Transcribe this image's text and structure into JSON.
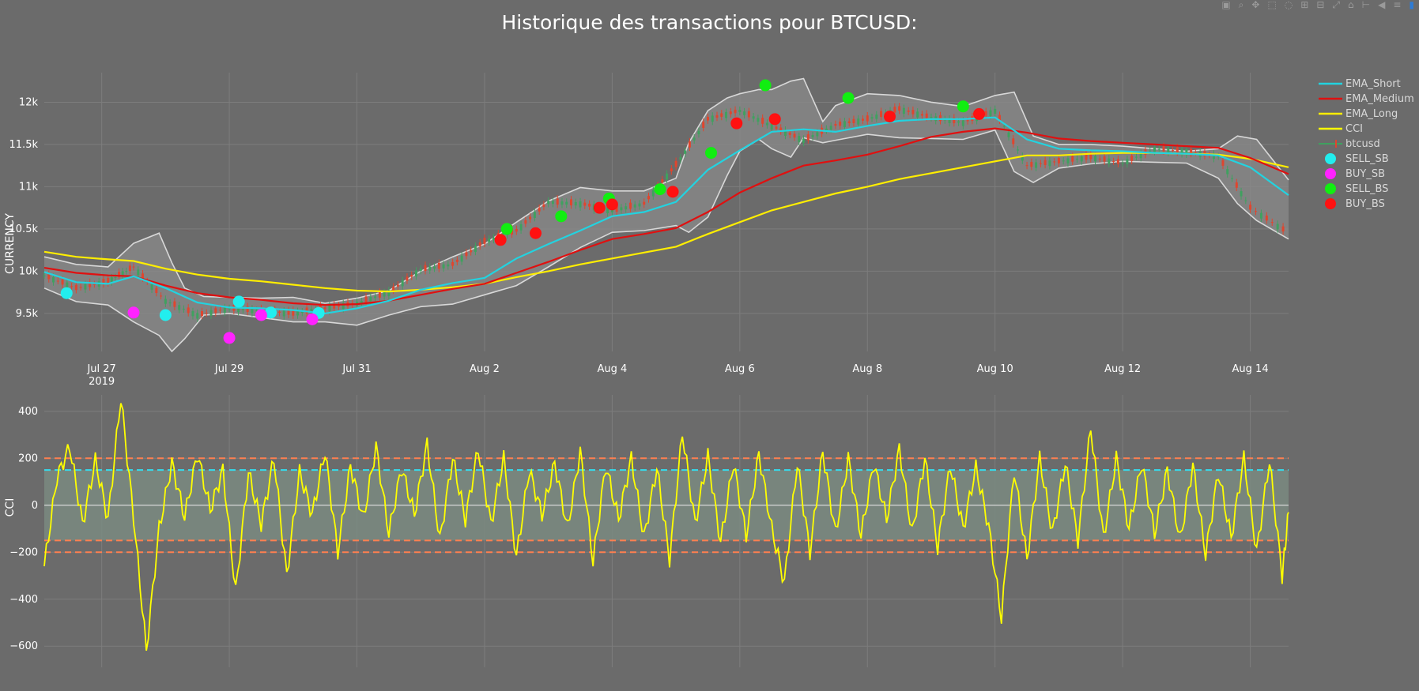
{
  "title": "Historique des transactions pour BTCUSD:",
  "modebar": {
    "icons": [
      "camera-icon",
      "zoom-icon",
      "pan-icon",
      "box-select-icon",
      "lasso-icon",
      "zoom-in-icon",
      "zoom-out-icon",
      "autoscale-icon",
      "reset-axes-icon",
      "spike-lines-icon",
      "hover-closest-icon",
      "hover-compare-icon",
      "plotly-logo-icon"
    ],
    "glyphs": [
      "▣",
      "⌕",
      "✥",
      "⬚",
      "◌",
      "⊞",
      "⊟",
      "⤢",
      "⌂",
      "⊢",
      "◀",
      "≡",
      "▮"
    ]
  },
  "colors": {
    "background": "#6b6b6b",
    "grid": "#7d7d7d",
    "ema_short": "#22d3e0",
    "ema_medium": "#e01010",
    "ema_long": "#ffee00",
    "cci": "#ffff00",
    "band": "#d8d8d8",
    "band_fill": "#8a8a8a",
    "cci_band_fill": "#7a8a80",
    "cci_orange": "#ff7f50",
    "cci_cyan": "#33ddee",
    "candle_up": "#3fa15f",
    "candle_down": "#e0452e",
    "sell_sb": "#22eeee",
    "buy_sb": "#ff22ff",
    "sell_bs": "#11ee11",
    "buy_bs": "#ff1111"
  },
  "chart_data": [
    {
      "type": "line",
      "title": "Historique des transactions pour BTCUSD:",
      "ylabel": "CURRENCY",
      "x_ticks": [
        "Jul 27\n2019",
        "Jul 29",
        "Jul 31",
        "Aug 2",
        "Aug 4",
        "Aug 6",
        "Aug 8",
        "Aug 10",
        "Aug 12",
        "Aug 14"
      ],
      "x_tick_days": [
        27,
        29,
        31,
        33,
        35,
        37,
        39,
        41,
        43,
        45
      ],
      "xlim_days": [
        26.1,
        45.6
      ],
      "y_ticks": [
        "9.5k",
        "10k",
        "10.5k",
        "11k",
        "11.5k",
        "12k"
      ],
      "y_tick_values": [
        9500,
        10000,
        10500,
        11000,
        11500,
        12000
      ],
      "ylim": [
        9050,
        12350
      ],
      "grid": true,
      "legend_position": "right",
      "series": [
        {
          "name": "EMA_Short",
          "kind": "line",
          "color_key": "ema_short",
          "x": [
            26.1,
            26.6,
            27.1,
            27.5,
            28.0,
            28.5,
            29.0,
            29.5,
            30.0,
            30.5,
            31.0,
            31.5,
            32.0,
            32.5,
            33.0,
            33.5,
            34.0,
            34.5,
            35.0,
            35.5,
            36.0,
            36.5,
            37.0,
            37.5,
            38.0,
            38.5,
            39.0,
            39.5,
            40.0,
            40.5,
            41.0,
            41.5,
            42.0,
            42.5,
            43.0,
            43.5,
            44.0,
            44.5,
            45.0,
            45.6
          ],
          "y": [
            9990,
            9870,
            9850,
            9940,
            9800,
            9630,
            9570,
            9560,
            9540,
            9500,
            9560,
            9650,
            9780,
            9860,
            9920,
            10150,
            10320,
            10480,
            10650,
            10700,
            10820,
            11200,
            11430,
            11650,
            11680,
            11650,
            11720,
            11780,
            11800,
            11800,
            11820,
            11560,
            11450,
            11430,
            11420,
            11400,
            11390,
            11370,
            11230,
            10900
          ]
        },
        {
          "name": "EMA_Medium",
          "kind": "line",
          "color_key": "ema_medium",
          "x": [
            26.1,
            26.6,
            27.1,
            27.5,
            28.0,
            28.5,
            29.0,
            29.5,
            30.0,
            30.5,
            31.0,
            31.5,
            32.0,
            32.5,
            33.0,
            33.5,
            34.0,
            34.5,
            35.0,
            35.5,
            36.0,
            36.5,
            37.0,
            37.5,
            38.0,
            38.5,
            39.0,
            39.5,
            40.0,
            40.5,
            41.0,
            41.5,
            42.0,
            42.5,
            43.0,
            43.5,
            44.0,
            44.5,
            45.0,
            45.6
          ],
          "y": [
            10040,
            9980,
            9950,
            9940,
            9830,
            9740,
            9690,
            9660,
            9620,
            9600,
            9610,
            9650,
            9720,
            9790,
            9850,
            9980,
            10110,
            10250,
            10380,
            10440,
            10510,
            10700,
            10930,
            11100,
            11250,
            11310,
            11380,
            11480,
            11590,
            11650,
            11690,
            11640,
            11570,
            11540,
            11520,
            11500,
            11480,
            11460,
            11340,
            11150
          ]
        },
        {
          "name": "EMA_Long",
          "kind": "line",
          "color_key": "ema_long",
          "x": [
            26.1,
            26.6,
            27.1,
            27.5,
            28.0,
            28.5,
            29.0,
            29.5,
            30.0,
            30.5,
            31.0,
            31.5,
            32.0,
            32.5,
            33.0,
            33.5,
            34.0,
            34.5,
            35.0,
            35.5,
            36.0,
            36.5,
            37.0,
            37.5,
            38.0,
            38.5,
            39.0,
            39.5,
            40.0,
            40.5,
            41.0,
            41.5,
            42.0,
            42.5,
            43.0,
            43.5,
            44.0,
            44.5,
            45.0,
            45.6
          ],
          "y": [
            10230,
            10170,
            10140,
            10120,
            10030,
            9960,
            9910,
            9880,
            9840,
            9800,
            9770,
            9760,
            9780,
            9810,
            9850,
            9930,
            10000,
            10080,
            10150,
            10220,
            10290,
            10440,
            10580,
            10720,
            10820,
            10920,
            11000,
            11090,
            11160,
            11230,
            11300,
            11370,
            11370,
            11390,
            11400,
            11400,
            11390,
            11380,
            11330,
            11230
          ]
        },
        {
          "name": "CCI",
          "kind": "line",
          "color_key": "cci",
          "x": [],
          "y": []
        },
        {
          "name": "btcusd",
          "kind": "candlestick",
          "color_key": "candle_up",
          "x": [
            26.1,
            26.6,
            27.1,
            27.5,
            28.0,
            28.5,
            29.0,
            29.5,
            30.0,
            30.5,
            31.0,
            31.5,
            32.0,
            32.5,
            33.0,
            33.5,
            34.0,
            34.5,
            35.0,
            35.5,
            36.0,
            36.5,
            37.0,
            37.5,
            38.0,
            38.5,
            39.0,
            39.5,
            40.0,
            40.5,
            41.0,
            41.5,
            42.0,
            42.5,
            43.0,
            43.5,
            44.0,
            44.5,
            45.0,
            45.6
          ],
          "y": [
            9950,
            9800,
            9880,
            10050,
            9650,
            9480,
            9560,
            9530,
            9500,
            9560,
            9620,
            9750,
            10020,
            10080,
            10350,
            10480,
            10820,
            10800,
            10720,
            10800,
            11260,
            11800,
            11900,
            11720,
            11550,
            11730,
            11800,
            11920,
            11820,
            11760,
            11900,
            11250,
            11300,
            11350,
            11280,
            11450,
            11420,
            11360,
            10750,
            10450
          ]
        },
        {
          "name": "SELL_SB",
          "kind": "markers",
          "color_key": "sell_sb",
          "x": [
            26.45,
            28.0,
            29.15,
            29.65,
            30.4
          ],
          "y": [
            9740,
            9480,
            9640,
            9510,
            9505
          ]
        },
        {
          "name": "BUY_SB",
          "kind": "markers",
          "color_key": "buy_sb",
          "x": [
            27.5,
            29.0,
            29.5,
            30.3
          ],
          "y": [
            9510,
            9210,
            9480,
            9430
          ]
        },
        {
          "name": "SELL_BS",
          "kind": "markers",
          "color_key": "sell_bs",
          "x": [
            33.35,
            34.2,
            34.95,
            35.75,
            36.55,
            37.4,
            38.7,
            40.5
          ],
          "y": [
            10500,
            10650,
            10860,
            10970,
            11400,
            12200,
            12050,
            11950
          ]
        },
        {
          "name": "BUY_BS",
          "kind": "markers",
          "color_key": "buy_bs",
          "x": [
            33.25,
            33.8,
            34.8,
            35.0,
            35.95,
            36.95,
            37.55,
            39.35,
            40.75
          ],
          "y": [
            10370,
            10450,
            10750,
            10790,
            10940,
            11750,
            11800,
            11830,
            11860
          ]
        },
        {
          "kind": "band",
          "color_key": "band",
          "x": [
            26.1,
            26.6,
            27.1,
            27.5,
            27.9,
            28.1,
            28.3,
            28.6,
            29.0,
            29.5,
            30.0,
            30.5,
            31.0,
            31.5,
            32.0,
            32.5,
            33.0,
            33.5,
            34.0,
            34.5,
            35.0,
            35.5,
            36.0,
            36.2,
            36.5,
            36.8,
            37.0,
            37.3,
            37.5,
            37.8,
            38.0,
            38.3,
            38.5,
            39.0,
            39.5,
            40.0,
            40.5,
            41.0,
            41.3,
            41.6,
            42.0,
            42.5,
            43.0,
            43.5,
            44.0,
            44.5,
            44.8,
            45.1,
            45.6
          ],
          "upper": [
            10170,
            10080,
            10050,
            10330,
            10450,
            10100,
            9800,
            9700,
            9690,
            9680,
            9690,
            9620,
            9680,
            9770,
            10000,
            10170,
            10320,
            10580,
            10830,
            10990,
            10950,
            10950,
            11100,
            11520,
            11900,
            12050,
            12100,
            12150,
            12150,
            12250,
            12280,
            11770,
            11960,
            12100,
            12080,
            12000,
            11950,
            12080,
            12120,
            11600,
            11500,
            11500,
            11480,
            11450,
            11420,
            11450,
            11600,
            11560,
            11080
          ],
          "lower": [
            9800,
            9640,
            9600,
            9400,
            9240,
            9050,
            9200,
            9480,
            9500,
            9450,
            9400,
            9400,
            9360,
            9480,
            9580,
            9610,
            9720,
            9830,
            10050,
            10280,
            10460,
            10480,
            10540,
            10460,
            10640,
            11130,
            11420,
            11560,
            11450,
            11350,
            11580,
            11520,
            11550,
            11620,
            11580,
            11570,
            11560,
            11670,
            11180,
            11050,
            11220,
            11270,
            11300,
            11290,
            11280,
            11100,
            10800,
            10600,
            10380
          ]
        }
      ]
    },
    {
      "type": "line",
      "ylabel": "CCI",
      "y_ticks": [
        "400",
        "200",
        "0",
        "−200",
        "−400",
        "−600"
      ],
      "y_tick_values": [
        400,
        200,
        0,
        -200,
        -400,
        -600
      ],
      "ylim": [
        -690,
        470
      ],
      "grid": true,
      "reference_lines": [
        {
          "y": 200,
          "color_key": "cci_orange",
          "style": "dashed"
        },
        {
          "y": 150,
          "color_key": "cci_cyan",
          "style": "dashed"
        },
        {
          "y": 0,
          "color_key": "band",
          "style": "solid"
        },
        {
          "y": -150,
          "color_key": "cci_orange",
          "style": "dashed"
        },
        {
          "y": -200,
          "color_key": "cci_orange",
          "style": "dashed"
        }
      ],
      "shaded_range": [
        -150,
        150
      ],
      "series": [
        {
          "name": "CCI",
          "kind": "line",
          "color_key": "cci",
          "x": [
            26.1,
            26.3,
            26.5,
            26.7,
            26.9,
            27.1,
            27.3,
            27.5,
            27.7,
            27.9,
            28.1,
            28.3,
            28.5,
            28.7,
            28.9,
            29.1,
            29.3,
            29.5,
            29.7,
            29.9,
            30.1,
            30.3,
            30.5,
            30.7,
            30.9,
            31.1,
            31.3,
            31.5,
            31.7,
            31.9,
            32.1,
            32.3,
            32.5,
            32.7,
            32.9,
            33.1,
            33.3,
            33.5,
            33.7,
            33.9,
            34.1,
            34.3,
            34.5,
            34.7,
            34.9,
            35.1,
            35.3,
            35.5,
            35.7,
            35.9,
            36.1,
            36.3,
            36.5,
            36.7,
            36.9,
            37.1,
            37.3,
            37.5,
            37.7,
            37.9,
            38.1,
            38.3,
            38.5,
            38.7,
            38.9,
            39.1,
            39.3,
            39.5,
            39.7,
            39.9,
            40.1,
            40.3,
            40.5,
            40.7,
            40.9,
            41.1,
            41.3,
            41.5,
            41.7,
            41.9,
            42.1,
            42.3,
            42.5,
            42.7,
            42.9,
            43.1,
            43.3,
            43.5,
            43.7,
            43.9,
            44.1,
            44.3,
            44.5,
            44.7,
            44.9,
            45.1,
            45.3,
            45.5,
            45.6
          ],
          "y": [
            -260,
            120,
            250,
            -80,
            190,
            -60,
            460,
            -50,
            -620,
            -100,
            180,
            -50,
            220,
            -20,
            150,
            -370,
            140,
            -80,
            200,
            -300,
            140,
            -40,
            230,
            -200,
            170,
            -60,
            250,
            -120,
            160,
            -40,
            260,
            -150,
            200,
            -60,
            240,
            -80,
            200,
            -220,
            150,
            -40,
            180,
            -100,
            230,
            -240,
            170,
            -60,
            200,
            -140,
            160,
            -230,
            310,
            -80,
            210,
            -160,
            180,
            -130,
            220,
            -100,
            -330,
            180,
            -200,
            230,
            -120,
            200,
            -130,
            180,
            -60,
            240,
            -120,
            200,
            -180,
            170,
            -100,
            160,
            -90,
            -480,
            150,
            -230,
            200,
            -120,
            180,
            -150,
            330,
            -140,
            200,
            -100,
            180,
            -120,
            150,
            -150,
            170,
            -210,
            140,
            -140,
            200,
            -200,
            190,
            -300,
            -30
          ]
        }
      ]
    }
  ]
}
